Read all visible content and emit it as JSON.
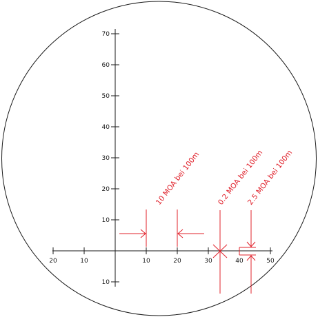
{
  "colors": {
    "ink": "#1a1a1a",
    "accent": "#e0202a",
    "background": "#ffffff"
  },
  "y_axis": {
    "ticks": [
      {
        "value": 70,
        "label": "70"
      },
      {
        "value": 60,
        "label": "60"
      },
      {
        "value": 50,
        "label": "50"
      },
      {
        "value": 40,
        "label": "40"
      },
      {
        "value": 30,
        "label": "30"
      },
      {
        "value": 20,
        "label": "20"
      },
      {
        "value": 10,
        "label": "10"
      },
      {
        "value": -10,
        "label": "10"
      }
    ]
  },
  "x_axis": {
    "ticks": [
      {
        "value": -20,
        "label": "20"
      },
      {
        "value": -10,
        "label": "10"
      },
      {
        "value": 10,
        "label": "10"
      },
      {
        "value": 20,
        "label": "20"
      },
      {
        "value": 30,
        "label": "30"
      },
      {
        "value": 40,
        "label": "40"
      },
      {
        "value": 50,
        "label": "50"
      }
    ]
  },
  "annotations": {
    "moa_10": "10 MOA bei 100m",
    "moa_0_2": "0.2 MOA bei 100m",
    "moa_2_5": "2.5 MOA bei 100m"
  }
}
